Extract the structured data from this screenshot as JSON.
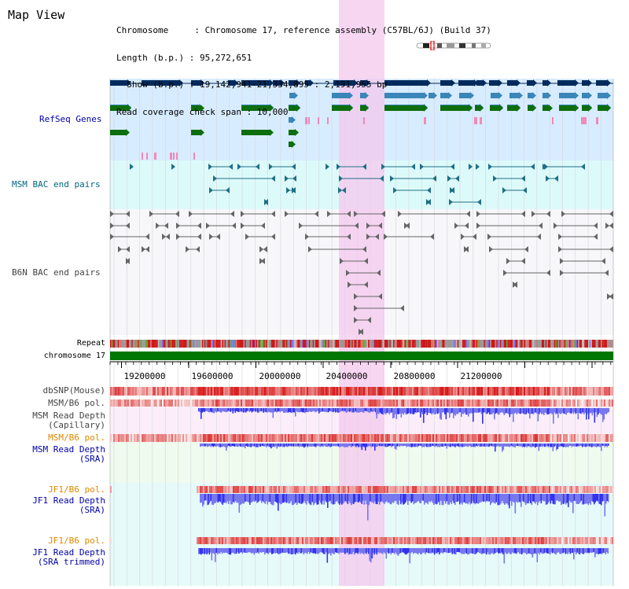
{
  "header": {
    "title": "Map View",
    "info_lines": [
      "Chromosome     : Chromosome 17, reference assembly (C57BL/6J) (Build 37)",
      "Length (b.p.) : 95,272,651",
      "  Show (b.p.) : 19,142,941-21,334,895 : 2,191,955 bp",
      "Read coverage check span : 10,000"
    ]
  },
  "tracks": {
    "refseq": {
      "label": "RefSeq Genes",
      "color": "#0000aa"
    },
    "msm_bac": {
      "label": "MSM BAC end pairs",
      "color": "#006680"
    },
    "b6n_bac": {
      "label": "B6N BAC end pairs",
      "color": "#444444"
    },
    "repeat": {
      "label": "Repeat"
    },
    "chromosome": {
      "label": "chromosome 17"
    },
    "dbsnp": {
      "label": "dbSNP(Mouse)"
    },
    "msm_b6_pol_1": {
      "label": "MSM/B6 pol."
    },
    "msm_read_depth_cap": {
      "label": "MSM Read Depth",
      "sub": "(Capillary)"
    },
    "msm_b6_pol_2": {
      "label": "MSM/B6 pol.",
      "color": "#dd8800"
    },
    "msm_read_depth_sra": {
      "label": "MSM Read Depth",
      "sub": "(SRA)",
      "color": "#0000aa"
    },
    "jf1_b6_pol_1": {
      "label": "JF1/B6 pol.",
      "color": "#dd8800"
    },
    "jf1_read_depth_sra": {
      "label": "JF1 Read Depth",
      "sub": "(SRA)",
      "color": "#0000aa"
    },
    "jf1_b6_pol_2": {
      "label": "JF1/B6 pol.",
      "color": "#dd8800"
    },
    "jf1_read_depth_trim": {
      "label": "JF1 Read Depth",
      "sub": "(SRA trimmed)",
      "color": "#0000aa"
    }
  },
  "axis": {
    "ticks": [
      "19200000",
      "19600000",
      "20000000",
      "20400000",
      "20800000",
      "21200000"
    ]
  },
  "colors": {
    "refseq_bg": "#d8ecff",
    "msm_bg": "#ddfafa",
    "b6n_bg": "#f7f7fa",
    "highlight": "#f4c8ee",
    "chromosome_bar": "#007700"
  }
}
